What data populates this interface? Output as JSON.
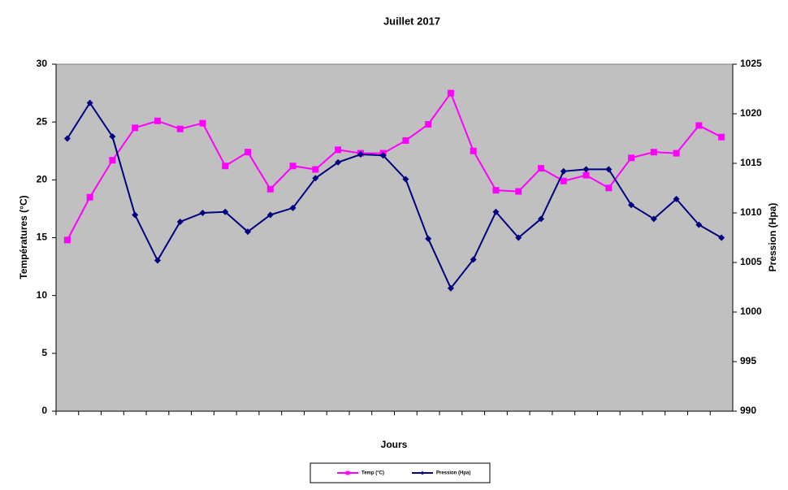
{
  "chart_data": {
    "type": "line",
    "title": "Juillet 2017",
    "xlabel": "Jours",
    "ylabel": "Températures (°C)",
    "y2label": "Pression (Hpa)",
    "categories": [
      null,
      null,
      null,
      null,
      null,
      null,
      null,
      null,
      null,
      null,
      null,
      null,
      null,
      null,
      null,
      null,
      null,
      null,
      null,
      null,
      null,
      null,
      null,
      null,
      null,
      null,
      null,
      null,
      null,
      null
    ],
    "series": [
      {
        "name": "Temp (°C)",
        "color": "#ff00ff",
        "marker": "square",
        "values": [
          14.8,
          18.5,
          21.7,
          24.5,
          25.1,
          24.4,
          24.9,
          21.2,
          22.4,
          19.2,
          21.2,
          20.9,
          22.6,
          22.3,
          22.3,
          23.4,
          24.8,
          27.5,
          22.5,
          19.1,
          19.0,
          21.0,
          19.9,
          20.4,
          19.3,
          21.9,
          22.4,
          22.3,
          24.7,
          23.7
        ]
      },
      {
        "name": "Pression (Hpa)",
        "color": "#000080",
        "marker": "diamond",
        "axis": "y2",
        "values": [
          1017.5,
          1021.1,
          1017.7,
          1009.8,
          1005.2,
          1009.1,
          1010.0,
          1010.1,
          1008.1,
          1009.8,
          1010.5,
          1013.5,
          1015.1,
          1015.9,
          1015.8,
          1013.4,
          1007.4,
          1002.4,
          1005.3,
          1010.1,
          1007.5,
          1009.4,
          1014.2,
          1014.4,
          1014.4,
          1010.8,
          1009.4,
          1011.4,
          1008.8,
          1007.5
        ]
      }
    ],
    "ylim": [
      0,
      30
    ],
    "yticks": [
      0,
      5,
      10,
      15,
      20,
      25,
      30
    ],
    "y2lim": [
      990,
      1025
    ],
    "y2ticks": [
      990,
      995,
      1000,
      1005,
      1010,
      1015,
      1020,
      1025
    ],
    "grid": false,
    "legend": "bottom",
    "plot_background": "#c0c0c0"
  }
}
